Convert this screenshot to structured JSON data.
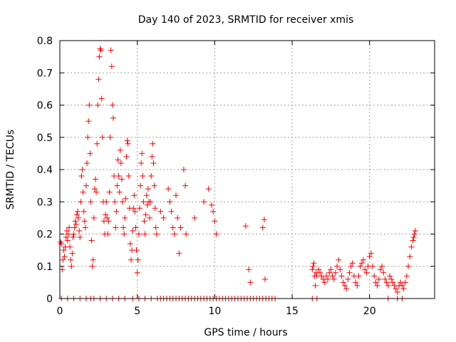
{
  "chart_data": {
    "type": "scatter",
    "title": "Day 140 of 2023, SRMTID for receiver xmis",
    "xlabel": "GPS time / hours",
    "ylabel": "SRMTID / TECUs",
    "xlim": [
      0,
      24.2
    ],
    "ylim": [
      0,
      0.8
    ],
    "xticks": [
      0,
      5,
      10,
      15,
      20
    ],
    "yticks": [
      0,
      0.1,
      0.2,
      0.3,
      0.4,
      0.5,
      0.6,
      0.7,
      0.8
    ],
    "xtick_labels": [
      "0",
      "5",
      "10",
      "15",
      "20"
    ],
    "ytick_labels": [
      "0",
      "0.1",
      "0.2",
      "0.3",
      "0.4",
      "0.5",
      "0.6",
      "0.7",
      "0.8"
    ],
    "grid": true,
    "marker": "+",
    "color": "#ff0000",
    "series": [
      {
        "name": "SRMTID",
        "points": [
          [
            0.05,
            0.175
          ],
          [
            0.1,
            0.17
          ],
          [
            0.15,
            0.09
          ],
          [
            0.2,
            0.12
          ],
          [
            0.25,
            0.15
          ],
          [
            0.3,
            0.13
          ],
          [
            0.35,
            0.16
          ],
          [
            0.4,
            0.19
          ],
          [
            0.45,
            0.21
          ],
          [
            0.5,
            0.18
          ],
          [
            0.55,
            0.2
          ],
          [
            0.6,
            0.22
          ],
          [
            0.65,
            0.16
          ],
          [
            0.7,
            0.12
          ],
          [
            0.75,
            0.1
          ],
          [
            0.8,
            0.14
          ],
          [
            0.85,
            0.19
          ],
          [
            0.9,
            0.2
          ],
          [
            0.95,
            0.22
          ],
          [
            1.0,
            0.24
          ],
          [
            1.05,
            0.23
          ],
          [
            1.1,
            0.26
          ],
          [
            1.15,
            0.27
          ],
          [
            1.2,
            0.25
          ],
          [
            1.25,
            0.21
          ],
          [
            1.3,
            0.19
          ],
          [
            1.35,
            0.3
          ],
          [
            1.4,
            0.38
          ],
          [
            1.45,
            0.4
          ],
          [
            1.5,
            0.33
          ],
          [
            1.55,
            0.27
          ],
          [
            1.6,
            0.24
          ],
          [
            1.65,
            0.22
          ],
          [
            1.7,
            0.35
          ],
          [
            1.75,
            0.42
          ],
          [
            1.8,
            0.5
          ],
          [
            1.85,
            0.55
          ],
          [
            1.9,
            0.6
          ],
          [
            1.95,
            0.45
          ],
          [
            2.0,
            0.3
          ],
          [
            2.05,
            0.18
          ],
          [
            2.1,
            0.1
          ],
          [
            2.15,
            0.12
          ],
          [
            2.2,
            0.25
          ],
          [
            2.25,
            0.34
          ],
          [
            2.3,
            0.37
          ],
          [
            2.35,
            0.33
          ],
          [
            2.4,
            0.48
          ],
          [
            2.45,
            0.6
          ],
          [
            2.5,
            0.68
          ],
          [
            2.55,
            0.75
          ],
          [
            2.6,
            0.775
          ],
          [
            2.65,
            0.77
          ],
          [
            2.7,
            0.62
          ],
          [
            2.75,
            0.5
          ],
          [
            2.8,
            0.3
          ],
          [
            2.85,
            0.24
          ],
          [
            2.9,
            0.2
          ],
          [
            2.95,
            0.26
          ],
          [
            3.0,
            0.3
          ],
          [
            3.05,
            0.25
          ],
          [
            3.1,
            0.2
          ],
          [
            3.15,
            0.24
          ],
          [
            3.2,
            0.33
          ],
          [
            3.25,
            0.5
          ],
          [
            3.3,
            0.77
          ],
          [
            3.35,
            0.72
          ],
          [
            3.4,
            0.6
          ],
          [
            3.45,
            0.56
          ],
          [
            3.5,
            0.38
          ],
          [
            3.55,
            0.3
          ],
          [
            3.6,
            0.22
          ],
          [
            3.65,
            0.27
          ],
          [
            3.7,
            0.35
          ],
          [
            3.75,
            0.43
          ],
          [
            3.8,
            0.38
          ],
          [
            3.85,
            0.33
          ],
          [
            3.9,
            0.46
          ],
          [
            3.95,
            0.42
          ],
          [
            4.0,
            0.37
          ],
          [
            4.05,
            0.3
          ],
          [
            4.1,
            0.22
          ],
          [
            4.15,
            0.2
          ],
          [
            4.2,
            0.25
          ],
          [
            4.25,
            0.31
          ],
          [
            4.3,
            0.44
          ],
          [
            4.35,
            0.49
          ],
          [
            4.4,
            0.48
          ],
          [
            4.45,
            0.38
          ],
          [
            4.5,
            0.28
          ],
          [
            4.55,
            0.17
          ],
          [
            4.6,
            0.12
          ],
          [
            4.65,
            0.15
          ],
          [
            4.7,
            0.21
          ],
          [
            4.75,
            0.28
          ],
          [
            4.8,
            0.32
          ],
          [
            4.85,
            0.27
          ],
          [
            4.9,
            0.22
          ],
          [
            4.95,
            0.15
          ],
          [
            5.0,
            0.08
          ],
          [
            5.05,
            0.12
          ],
          [
            5.1,
            0.2
          ],
          [
            5.15,
            0.28
          ],
          [
            5.2,
            0.35
          ],
          [
            5.25,
            0.42
          ],
          [
            5.3,
            0.45
          ],
          [
            5.35,
            0.38
          ],
          [
            5.4,
            0.3
          ],
          [
            5.45,
            0.24
          ],
          [
            5.5,
            0.2
          ],
          [
            5.55,
            0.26
          ],
          [
            5.6,
            0.32
          ],
          [
            5.65,
            0.29
          ],
          [
            5.7,
            0.34
          ],
          [
            5.75,
            0.3
          ],
          [
            5.8,
            0.25
          ],
          [
            5.85,
            0.3
          ],
          [
            5.9,
            0.38
          ],
          [
            5.95,
            0.44
          ],
          [
            6.0,
            0.48
          ],
          [
            6.05,
            0.42
          ],
          [
            6.1,
            0.35
          ],
          [
            6.15,
            0.28
          ],
          [
            6.2,
            0.22
          ],
          [
            6.25,
            0.2
          ],
          [
            6.5,
            0.27
          ],
          [
            6.7,
            0.25
          ],
          [
            7.0,
            0.34
          ],
          [
            7.1,
            0.3
          ],
          [
            7.2,
            0.27
          ],
          [
            7.3,
            0.22
          ],
          [
            7.4,
            0.2
          ],
          [
            7.5,
            0.32
          ],
          [
            7.6,
            0.25
          ],
          [
            7.7,
            0.14
          ],
          [
            7.8,
            0.22
          ],
          [
            8.0,
            0.4
          ],
          [
            8.1,
            0.35
          ],
          [
            8.15,
            0.2
          ],
          [
            8.7,
            0.25
          ],
          [
            9.3,
            0.3
          ],
          [
            9.6,
            0.34
          ],
          [
            9.8,
            0.29
          ],
          [
            9.9,
            0.27
          ],
          [
            10.0,
            0.24
          ],
          [
            10.1,
            0.2
          ],
          [
            12.0,
            0.225
          ],
          [
            12.2,
            0.09
          ],
          [
            12.3,
            0.05
          ],
          [
            13.1,
            0.22
          ],
          [
            13.2,
            0.245
          ],
          [
            13.25,
            0.06
          ],
          [
            16.3,
            0.09
          ],
          [
            16.35,
            0.1
          ],
          [
            16.4,
            0.11
          ],
          [
            16.45,
            0.07
          ],
          [
            16.5,
            0.04
          ],
          [
            16.55,
            0.08
          ],
          [
            16.6,
            0.07
          ],
          [
            16.7,
            0.09
          ],
          [
            16.8,
            0.08
          ],
          [
            16.9,
            0.07
          ],
          [
            17.0,
            0.06
          ],
          [
            17.1,
            0.05
          ],
          [
            17.2,
            0.07
          ],
          [
            17.3,
            0.06
          ],
          [
            17.4,
            0.08
          ],
          [
            17.5,
            0.09
          ],
          [
            17.6,
            0.07
          ],
          [
            17.7,
            0.06
          ],
          [
            17.8,
            0.08
          ],
          [
            17.9,
            0.1
          ],
          [
            18.0,
            0.12
          ],
          [
            18.1,
            0.09
          ],
          [
            18.2,
            0.07
          ],
          [
            18.3,
            0.05
          ],
          [
            18.4,
            0.04
          ],
          [
            18.5,
            0.03
          ],
          [
            18.6,
            0.06
          ],
          [
            18.7,
            0.08
          ],
          [
            18.8,
            0.1
          ],
          [
            18.9,
            0.11
          ],
          [
            19.0,
            0.07
          ],
          [
            19.1,
            0.05
          ],
          [
            19.2,
            0.04
          ],
          [
            19.3,
            0.07
          ],
          [
            19.4,
            0.1
          ],
          [
            19.5,
            0.11
          ],
          [
            19.6,
            0.12
          ],
          [
            19.7,
            0.09
          ],
          [
            19.8,
            0.08
          ],
          [
            19.9,
            0.1
          ],
          [
            20.0,
            0.13
          ],
          [
            20.1,
            0.14
          ],
          [
            20.2,
            0.1
          ],
          [
            20.3,
            0.07
          ],
          [
            20.4,
            0.05
          ],
          [
            20.5,
            0.04
          ],
          [
            20.6,
            0.06
          ],
          [
            20.7,
            0.09
          ],
          [
            20.8,
            0.1
          ],
          [
            20.9,
            0.08
          ],
          [
            21.0,
            0.06
          ],
          [
            21.1,
            0.05
          ],
          [
            21.2,
            0.04
          ],
          [
            21.3,
            0.07
          ],
          [
            21.4,
            0.06
          ],
          [
            21.5,
            0.05
          ],
          [
            21.6,
            0.04
          ],
          [
            21.7,
            0.03
          ],
          [
            21.8,
            0.02
          ],
          [
            21.9,
            0.04
          ],
          [
            22.0,
            0.05
          ],
          [
            22.1,
            0.04
          ],
          [
            22.2,
            0.03
          ],
          [
            22.3,
            0.05
          ],
          [
            22.4,
            0.07
          ],
          [
            22.5,
            0.1
          ],
          [
            22.6,
            0.13
          ],
          [
            22.7,
            0.16
          ],
          [
            22.8,
            0.18
          ],
          [
            22.85,
            0.19
          ],
          [
            22.9,
            0.2
          ],
          [
            22.95,
            0.21
          ],
          [
            0.1,
            0
          ],
          [
            0.5,
            0
          ],
          [
            0.9,
            0
          ],
          [
            1.3,
            0
          ],
          [
            1.7,
            0
          ],
          [
            2.0,
            0
          ],
          [
            2.2,
            0
          ],
          [
            2.6,
            0
          ],
          [
            3.0,
            0
          ],
          [
            3.4,
            0
          ],
          [
            3.8,
            0
          ],
          [
            4.2,
            0
          ],
          [
            4.7,
            0
          ],
          [
            5.1,
            0
          ],
          [
            5.5,
            0
          ],
          [
            5.9,
            0
          ],
          [
            6.3,
            0
          ],
          [
            6.5,
            0
          ],
          [
            6.7,
            0
          ],
          [
            6.9,
            0
          ],
          [
            7.1,
            0
          ],
          [
            7.3,
            0
          ],
          [
            7.5,
            0
          ],
          [
            7.7,
            0
          ],
          [
            7.9,
            0
          ],
          [
            8.1,
            0
          ],
          [
            8.3,
            0
          ],
          [
            8.5,
            0
          ],
          [
            8.7,
            0
          ],
          [
            8.9,
            0
          ],
          [
            9.1,
            0
          ],
          [
            9.3,
            0
          ],
          [
            9.5,
            0
          ],
          [
            9.7,
            0
          ],
          [
            9.9,
            0
          ],
          [
            10.1,
            0
          ],
          [
            10.3,
            0
          ],
          [
            10.5,
            0
          ],
          [
            10.7,
            0
          ],
          [
            10.9,
            0
          ],
          [
            11.1,
            0
          ],
          [
            11.3,
            0
          ],
          [
            11.5,
            0
          ],
          [
            11.7,
            0
          ],
          [
            11.9,
            0
          ],
          [
            12.1,
            0
          ],
          [
            12.3,
            0
          ],
          [
            12.5,
            0
          ],
          [
            12.7,
            0
          ],
          [
            12.9,
            0
          ],
          [
            13.1,
            0
          ],
          [
            13.3,
            0
          ],
          [
            13.5,
            0
          ],
          [
            13.7,
            0
          ],
          [
            13.9,
            0
          ],
          [
            16.3,
            0
          ],
          [
            16.6,
            0
          ],
          [
            21.2,
            0
          ],
          [
            21.8,
            0
          ],
          [
            22.1,
            0
          ]
        ]
      }
    ]
  }
}
